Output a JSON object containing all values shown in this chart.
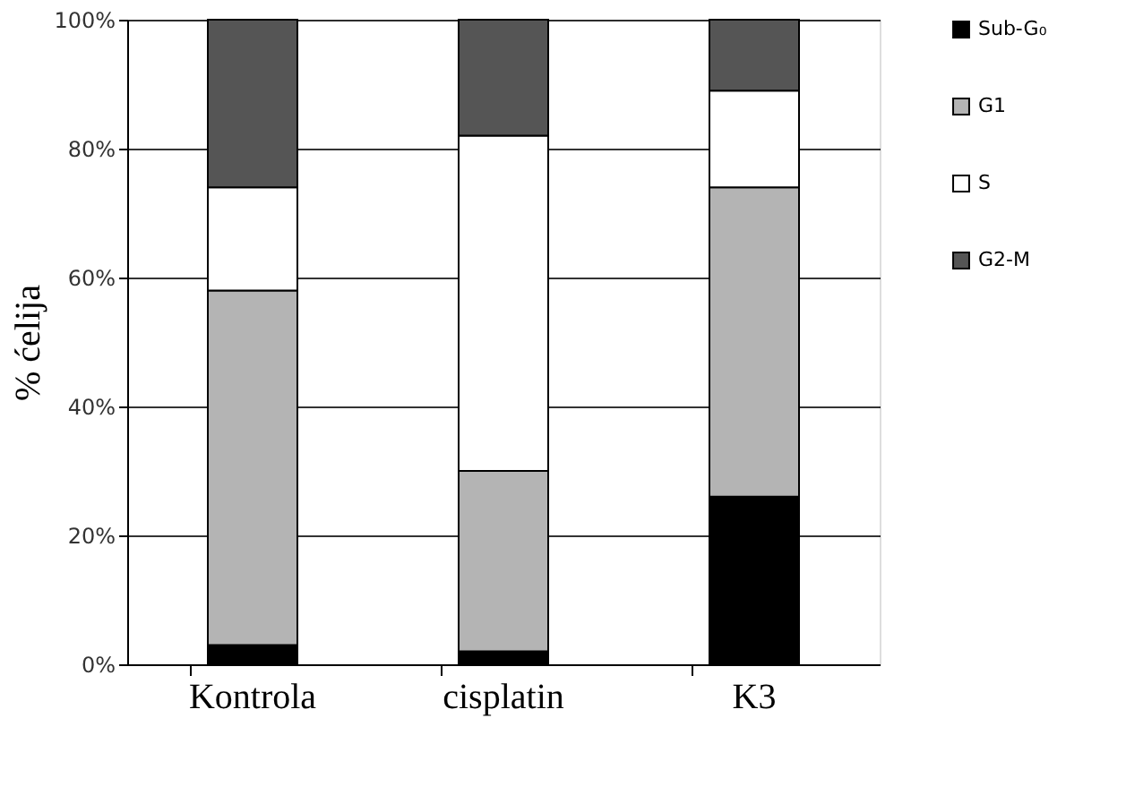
{
  "chart_data": {
    "type": "bar",
    "stacked": true,
    "ylabel": "% ćelija",
    "categories": [
      "Kontrola",
      "cisplatin",
      "K3"
    ],
    "series": [
      {
        "name": "Sub-G₀",
        "color": "#000000",
        "values": [
          3,
          2,
          26
        ]
      },
      {
        "name": "G1",
        "color": "#b4b4b4",
        "values": [
          55,
          28,
          48
        ]
      },
      {
        "name": "S",
        "color": "#ffffff",
        "values": [
          16,
          52,
          15
        ]
      },
      {
        "name": "G2-M",
        "color": "#555555",
        "values": [
          26,
          18,
          11
        ]
      }
    ],
    "ylim": [
      0,
      100
    ],
    "yticks": [
      {
        "value": 0,
        "label": "0%"
      },
      {
        "value": 20,
        "label": "20%"
      },
      {
        "value": 40,
        "label": "40%"
      },
      {
        "value": 60,
        "label": "60%"
      },
      {
        "value": 80,
        "label": "80%"
      },
      {
        "value": 100,
        "label": "100%"
      }
    ],
    "grid": "y",
    "legend": "right"
  }
}
